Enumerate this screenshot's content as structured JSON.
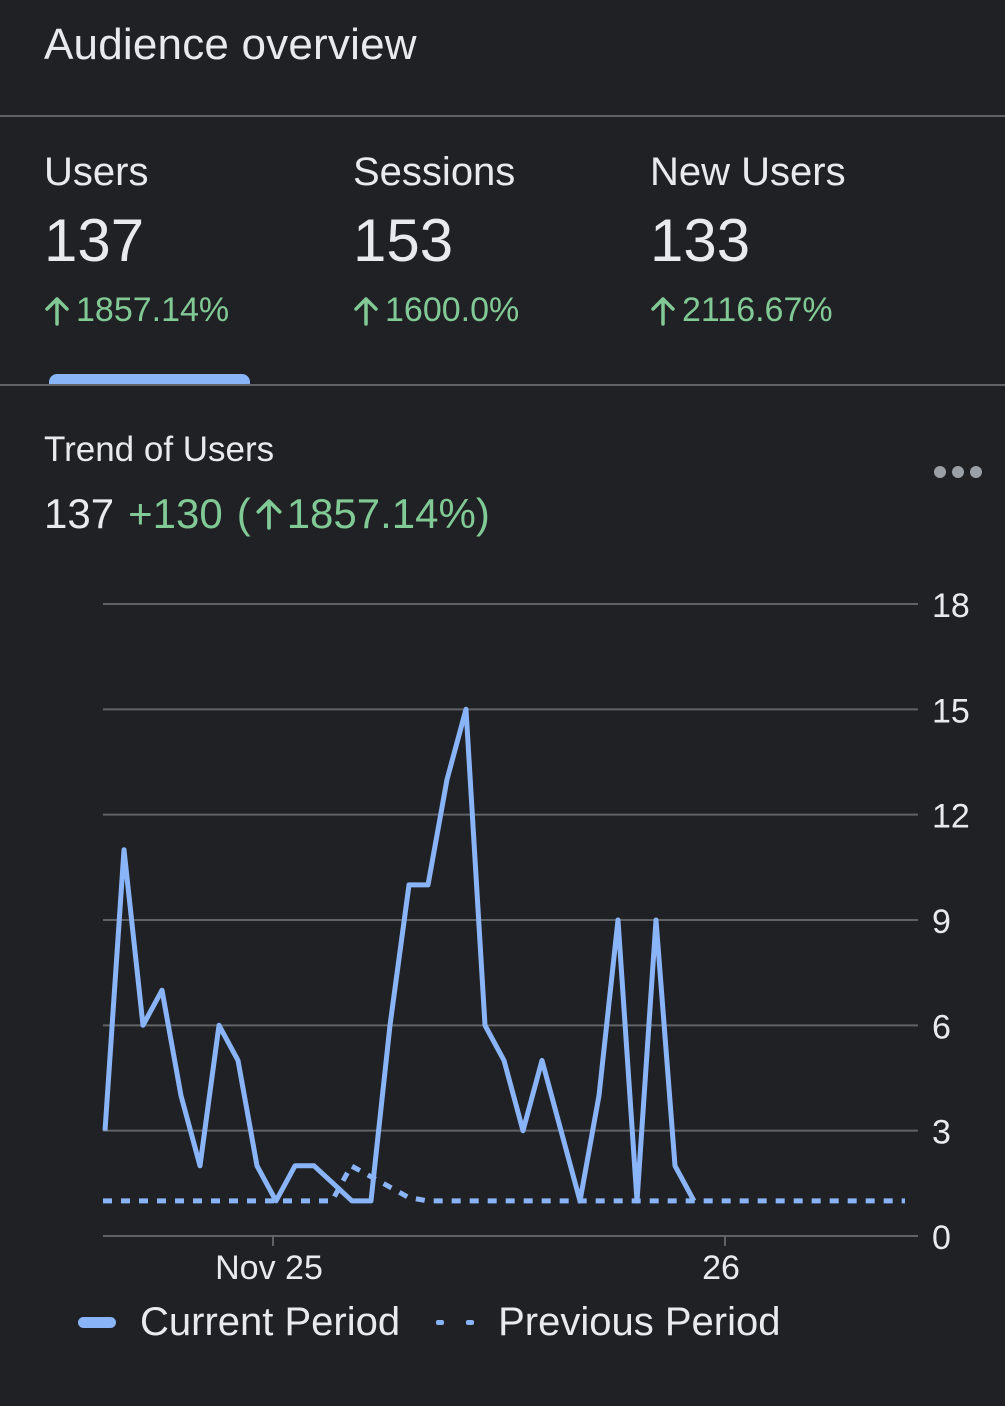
{
  "header": {
    "title": "Audience overview"
  },
  "metrics": [
    {
      "label": "Users",
      "value": "137",
      "change": "1857.14%"
    },
    {
      "label": "Sessions",
      "value": "153",
      "change": "1600.0%"
    },
    {
      "label": "New Users",
      "value": "133",
      "change": "2116.67%"
    }
  ],
  "selected_metric": "Users",
  "trend": {
    "title": "Trend of Users",
    "value": "137",
    "delta": "+130",
    "pct_open": "(",
    "pct": "1857.14%)"
  },
  "colors": {
    "background": "#202124",
    "accent": "#8ab4f8",
    "positive": "#81c995",
    "grid": "#5f6368"
  },
  "icons": {
    "up": "arrow-up-icon",
    "more": "more-horizontal-icon"
  },
  "chart_data": {
    "type": "line",
    "x_tick_labels": [
      "Nov 25",
      "26"
    ],
    "y_ticks": [
      0,
      3,
      6,
      9,
      12,
      15,
      18
    ],
    "ylim": [
      0,
      18
    ],
    "grid": true,
    "legend_position": "bottom",
    "series": [
      {
        "name": "Current Period",
        "style": "solid",
        "values": [
          3,
          11,
          6,
          7,
          4,
          2,
          6,
          5,
          2,
          1,
          2,
          2,
          1.5,
          1,
          1,
          6,
          10,
          10,
          13,
          15,
          6,
          5,
          3,
          5,
          3,
          1,
          4,
          9,
          1,
          9,
          2,
          1
        ]
      },
      {
        "name": "Previous Period",
        "style": "dotted",
        "values": [
          1,
          1,
          1,
          1,
          1,
          1,
          1,
          1,
          1,
          1,
          1,
          1,
          1,
          2,
          1.7,
          1.4,
          1.1,
          1,
          1,
          1,
          1,
          1,
          1,
          1,
          1,
          1,
          1,
          1,
          1,
          1,
          1,
          1,
          1,
          1,
          1,
          1,
          1,
          1,
          1,
          1,
          1,
          1,
          1
        ]
      }
    ]
  }
}
